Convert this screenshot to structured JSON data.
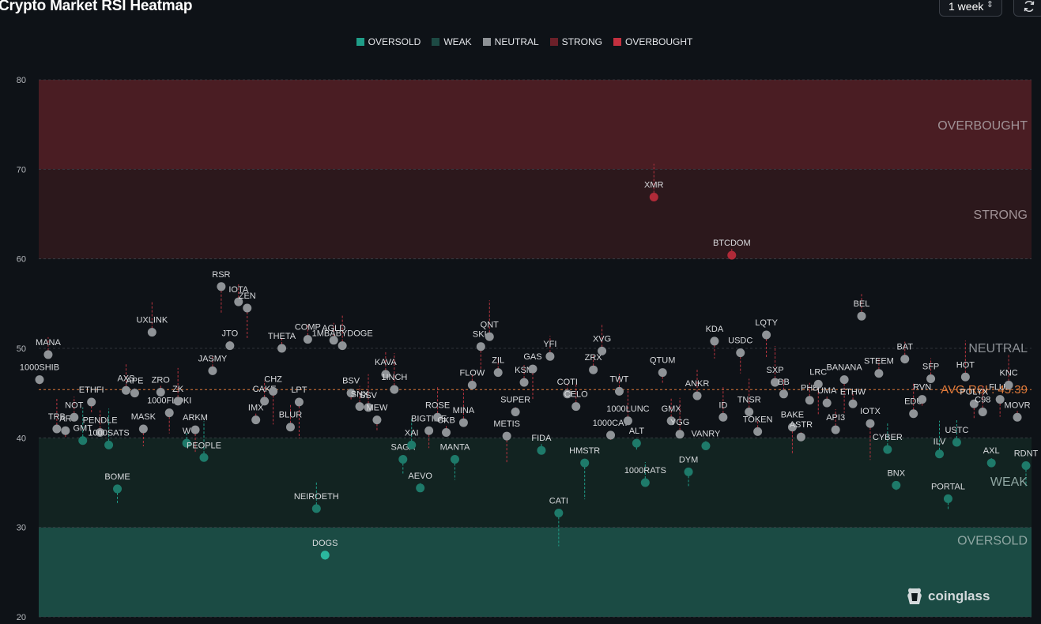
{
  "header": {
    "title": "Crypto Market RSI Heatmap",
    "period_value": "1 week",
    "period_chevron": "⌃⌄"
  },
  "watermark": {
    "brand": "coinglass"
  },
  "colors": {
    "oversold": "#1f9d88",
    "weak": "#1d4a44",
    "neutral": "#8e9296",
    "strong": "#6b2029",
    "overbought": "#c3303f",
    "avg_line": "#e07a3a"
  },
  "chart_data": {
    "type": "scatter",
    "title": "Crypto Market RSI Heatmap",
    "ylim": [
      20,
      80
    ],
    "yticks": [
      "20",
      "30",
      "40",
      "50",
      "60",
      "70",
      "80"
    ],
    "grid": true,
    "legend_placement": "top-center",
    "legend": [
      "OVERSOLD",
      "WEAK",
      "NEUTRAL",
      "STRONG",
      "OVERBOUGHT"
    ],
    "zones": [
      {
        "label": "OVERSOLD",
        "from": 20,
        "to": 30
      },
      {
        "label": "WEAK",
        "from": 30,
        "to": 40
      },
      {
        "label": "NEUTRAL",
        "from": 40,
        "to": 60
      },
      {
        "label": "STRONG",
        "from": 60,
        "to": 70
      },
      {
        "label": "OVERBOUGHT",
        "from": 70,
        "to": 80
      }
    ],
    "avg_rsi": {
      "label": "AVG RSI : 45.39",
      "value": 45.39
    },
    "points": [
      {
        "name": "1000SHIB",
        "rsi": 46.5
      },
      {
        "name": "MANA",
        "rsi": 49.3
      },
      {
        "name": "TRB",
        "rsi": 41.0
      },
      {
        "name": "AR",
        "rsi": 40.8
      },
      {
        "name": "NOT",
        "rsi": 42.3
      },
      {
        "name": "GMT",
        "rsi": 39.7
      },
      {
        "name": "ETHFI",
        "rsi": 44.0
      },
      {
        "name": "PENDLE",
        "rsi": 40.6
      },
      {
        "name": "1000SATS",
        "rsi": 39.2
      },
      {
        "name": "BOME",
        "rsi": 34.3
      },
      {
        "name": "AXS",
        "rsi": 45.3
      },
      {
        "name": "APE",
        "rsi": 45.0
      },
      {
        "name": "MASK",
        "rsi": 41.0
      },
      {
        "name": "UXLINK",
        "rsi": 51.8
      },
      {
        "name": "ZRO",
        "rsi": 45.1
      },
      {
        "name": "1000FLOKI",
        "rsi": 42.8
      },
      {
        "name": "ZK",
        "rsi": 44.1
      },
      {
        "name": "W",
        "rsi": 39.4
      },
      {
        "name": "ARKM",
        "rsi": 40.9
      },
      {
        "name": "PEOPLE",
        "rsi": 37.8
      },
      {
        "name": "JASMY",
        "rsi": 47.5
      },
      {
        "name": "RSR",
        "rsi": 56.9
      },
      {
        "name": "JTO",
        "rsi": 50.3
      },
      {
        "name": "IOTA",
        "rsi": 55.2
      },
      {
        "name": "ZEN",
        "rsi": 54.5
      },
      {
        "name": "IMX",
        "rsi": 42.0
      },
      {
        "name": "CAKE",
        "rsi": 44.1
      },
      {
        "name": "CHZ",
        "rsi": 45.2
      },
      {
        "name": "THETA",
        "rsi": 50.0
      },
      {
        "name": "BLUR",
        "rsi": 41.2
      },
      {
        "name": "LPT",
        "rsi": 44.0
      },
      {
        "name": "COMP",
        "rsi": 51.0
      },
      {
        "name": "NEIROETH",
        "rsi": 32.1
      },
      {
        "name": "DOGS",
        "rsi": 26.9
      },
      {
        "name": "AGLD",
        "rsi": 50.9
      },
      {
        "name": "1MBABYDOGE",
        "rsi": 50.3
      },
      {
        "name": "BSV",
        "rsi": 45.0
      },
      {
        "name": "SNX",
        "rsi": 43.5
      },
      {
        "name": "SSV",
        "rsi": 43.4
      },
      {
        "name": "MEW",
        "rsi": 42.0
      },
      {
        "name": "KAVA",
        "rsi": 47.1
      },
      {
        "name": "1INCH",
        "rsi": 45.4
      },
      {
        "name": "SAGA",
        "rsi": 37.6
      },
      {
        "name": "XAI",
        "rsi": 39.2
      },
      {
        "name": "AEVO",
        "rsi": 34.4
      },
      {
        "name": "BIGTIME",
        "rsi": 40.8
      },
      {
        "name": "ROSE",
        "rsi": 42.3
      },
      {
        "name": "CKB",
        "rsi": 40.6
      },
      {
        "name": "MANTA",
        "rsi": 37.6
      },
      {
        "name": "MINA",
        "rsi": 41.7
      },
      {
        "name": "FLOW",
        "rsi": 45.9
      },
      {
        "name": "SKL",
        "rsi": 50.2
      },
      {
        "name": "QNT",
        "rsi": 51.3
      },
      {
        "name": "ZIL",
        "rsi": 47.3
      },
      {
        "name": "METIS",
        "rsi": 40.2
      },
      {
        "name": "SUPER",
        "rsi": 42.9
      },
      {
        "name": "KSM",
        "rsi": 46.2
      },
      {
        "name": "GAS",
        "rsi": 47.7
      },
      {
        "name": "FIDA",
        "rsi": 38.6
      },
      {
        "name": "YFI",
        "rsi": 49.1
      },
      {
        "name": "CATI",
        "rsi": 31.6
      },
      {
        "name": "COTI",
        "rsi": 44.9
      },
      {
        "name": "CELO",
        "rsi": 43.5
      },
      {
        "name": "HMSTR",
        "rsi": 37.2
      },
      {
        "name": "ZRX",
        "rsi": 47.6
      },
      {
        "name": "XVG",
        "rsi": 49.7
      },
      {
        "name": "1000CAT",
        "rsi": 40.3
      },
      {
        "name": "TWT",
        "rsi": 45.2
      },
      {
        "name": "1000LUNC",
        "rsi": 41.9
      },
      {
        "name": "ALT",
        "rsi": 39.4
      },
      {
        "name": "1000RATS",
        "rsi": 35.0
      },
      {
        "name": "XMR",
        "rsi": 66.9
      },
      {
        "name": "QTUM",
        "rsi": 47.3
      },
      {
        "name": "GMX",
        "rsi": 41.9
      },
      {
        "name": "YGG",
        "rsi": 40.4
      },
      {
        "name": "DYM",
        "rsi": 36.2
      },
      {
        "name": "ANKR",
        "rsi": 44.7
      },
      {
        "name": "VANRY",
        "rsi": 39.1
      },
      {
        "name": "KDA",
        "rsi": 50.8
      },
      {
        "name": "ID",
        "rsi": 42.3
      },
      {
        "name": "BTCDOM",
        "rsi": 60.4
      },
      {
        "name": "USDC",
        "rsi": 49.5
      },
      {
        "name": "TNSR",
        "rsi": 42.9
      },
      {
        "name": "TOKEN",
        "rsi": 40.7
      },
      {
        "name": "LQTY",
        "rsi": 51.5
      },
      {
        "name": "SXP",
        "rsi": 46.2
      },
      {
        "name": "BB",
        "rsi": 44.9
      },
      {
        "name": "BAKE",
        "rsi": 41.2
      },
      {
        "name": "ASTR",
        "rsi": 40.1
      },
      {
        "name": "PHB",
        "rsi": 44.2
      },
      {
        "name": "LRC",
        "rsi": 46.0
      },
      {
        "name": "UMA",
        "rsi": 43.9
      },
      {
        "name": "API3",
        "rsi": 40.9
      },
      {
        "name": "BANANA",
        "rsi": 46.5
      },
      {
        "name": "ETHW",
        "rsi": 43.8
      },
      {
        "name": "BEL",
        "rsi": 53.6
      },
      {
        "name": "IOTX",
        "rsi": 41.6
      },
      {
        "name": "STEEM",
        "rsi": 47.2
      },
      {
        "name": "CYBER",
        "rsi": 38.7
      },
      {
        "name": "BNX",
        "rsi": 34.7
      },
      {
        "name": "BAT",
        "rsi": 48.8
      },
      {
        "name": "EDU",
        "rsi": 42.7
      },
      {
        "name": "RVN",
        "rsi": 44.3
      },
      {
        "name": "SFP",
        "rsi": 46.6
      },
      {
        "name": "ILV",
        "rsi": 38.2
      },
      {
        "name": "PORTAL",
        "rsi": 33.2
      },
      {
        "name": "USTC",
        "rsi": 39.5
      },
      {
        "name": "HOT",
        "rsi": 46.8
      },
      {
        "name": "POLYX",
        "rsi": 43.8
      },
      {
        "name": "C98",
        "rsi": 42.9
      },
      {
        "name": "AXL",
        "rsi": 37.2
      },
      {
        "name": "FLUX",
        "rsi": 44.3
      },
      {
        "name": "KNC",
        "rsi": 45.9
      },
      {
        "name": "MOVR",
        "rsi": 42.3
      },
      {
        "name": "RDNT",
        "rsi": 36.9
      }
    ]
  }
}
